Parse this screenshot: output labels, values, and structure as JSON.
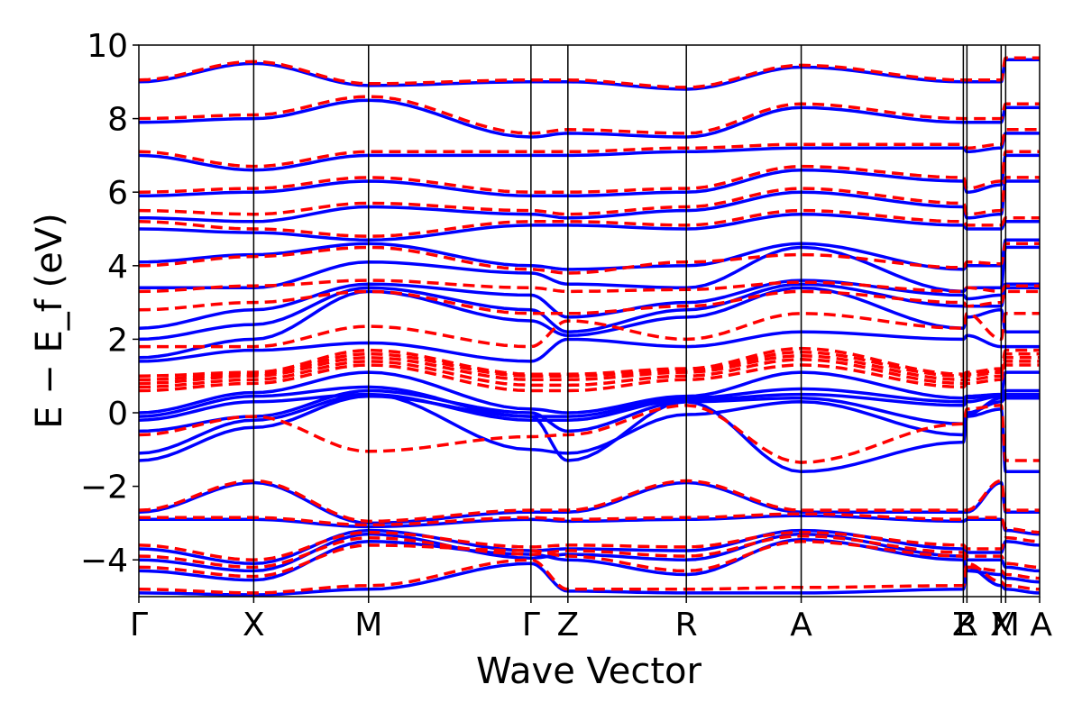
{
  "chart_data": {
    "type": "line",
    "xlabel": "Wave Vector",
    "ylabel": "E − E_f (eV)",
    "ylim": [
      -5,
      10
    ],
    "y_ticks": [
      -4,
      -2,
      0,
      2,
      4,
      6,
      8,
      10
    ],
    "y_tick_labels": [
      "−4",
      "−2",
      "0",
      "2",
      "4",
      "6",
      "8",
      "10"
    ],
    "k_path": [
      {
        "label": "Γ",
        "x": 0.0
      },
      {
        "label": "X",
        "x": 0.1275
      },
      {
        "label": "M",
        "x": 0.255
      },
      {
        "label": "Γ",
        "x": 0.4353
      },
      {
        "label": "Z",
        "x": 0.4763
      },
      {
        "label": "R",
        "x": 0.6078
      },
      {
        "label": "A",
        "x": 0.7353
      },
      {
        "label": "Z",
        "x": 0.9153
      },
      {
        "label": "R",
        "x": 0.9193
      },
      {
        "label": "X",
        "x": 0.9573
      },
      {
        "label": "M",
        "x": 0.9623
      },
      {
        "label": "A",
        "x": 1.0
      }
    ],
    "series": [
      {
        "color": "#0000ff",
        "style": "solid",
        "bands": [
          [
            -4.9,
            -4.95,
            -4.8,
            -4.1,
            -4.85,
            -4.9,
            -4.9,
            -4.8,
            -4.2,
            -4.7,
            -4.8,
            -4.9
          ],
          [
            -4.3,
            -4.55,
            -3.5,
            -3.85,
            -4.0,
            -4.4,
            -3.45,
            -4.0,
            -4.3,
            -4.4,
            -4.5,
            -4.6
          ],
          [
            -4.0,
            -4.3,
            -3.3,
            -3.95,
            -3.85,
            -4.0,
            -3.3,
            -3.9,
            -4.0,
            -4.0,
            -4.2,
            -4.3
          ],
          [
            -3.7,
            -4.1,
            -3.2,
            -3.75,
            -3.7,
            -3.75,
            -3.2,
            -3.7,
            -3.8,
            -3.8,
            -3.5,
            -3.6
          ],
          [
            -2.9,
            -2.9,
            -3.1,
            -2.9,
            -2.95,
            -2.9,
            -2.8,
            -2.95,
            -2.9,
            -2.9,
            -3.2,
            -3.3
          ],
          [
            -2.7,
            -1.9,
            -3.0,
            -2.7,
            -2.7,
            -1.9,
            -2.7,
            -2.7,
            -2.7,
            -1.9,
            -2.7,
            -2.7
          ],
          [
            -1.3,
            -0.4,
            0.45,
            -0.1,
            -1.3,
            0.3,
            -1.6,
            -0.8,
            -0.1,
            0.1,
            -1.6,
            -1.6
          ],
          [
            -1.1,
            -0.2,
            0.5,
            -1.0,
            -1.1,
            -0.05,
            0.3,
            -0.6,
            0.0,
            0.3,
            0.4,
            0.4
          ],
          [
            -0.5,
            -0.1,
            0.6,
            0.0,
            -0.5,
            0.3,
            0.4,
            -0.3,
            -0.05,
            0.4,
            0.45,
            0.45
          ],
          [
            -0.2,
            0.3,
            0.5,
            -0.2,
            -0.2,
            0.35,
            0.5,
            0.2,
            0.3,
            0.45,
            0.5,
            0.5
          ],
          [
            -0.1,
            0.45,
            0.7,
            -0.1,
            -0.1,
            0.4,
            0.65,
            0.3,
            0.4,
            0.5,
            0.6,
            0.6
          ],
          [
            0.0,
            0.55,
            1.1,
            0.1,
            0.0,
            0.45,
            1.1,
            0.4,
            0.45,
            0.5,
            1.1,
            1.1
          ],
          [
            1.4,
            1.7,
            1.9,
            1.4,
            2.0,
            1.8,
            2.2,
            2.0,
            2.1,
            1.8,
            1.8,
            1.8
          ],
          [
            1.5,
            2.0,
            3.3,
            2.5,
            2.1,
            2.6,
            3.4,
            2.3,
            2.6,
            2.8,
            2.2,
            2.2
          ],
          [
            2.0,
            2.4,
            3.4,
            2.8,
            2.2,
            2.8,
            3.5,
            2.9,
            2.9,
            2.9,
            3.4,
            3.4
          ],
          [
            2.3,
            2.8,
            3.5,
            3.2,
            2.6,
            3.0,
            3.6,
            3.2,
            3.1,
            3.2,
            3.5,
            3.5
          ],
          [
            3.4,
            3.4,
            4.1,
            3.8,
            3.5,
            3.4,
            4.5,
            3.3,
            3.4,
            3.4,
            4.5,
            4.5
          ],
          [
            4.1,
            4.3,
            4.6,
            4.0,
            3.9,
            4.0,
            4.6,
            3.9,
            4.0,
            4.0,
            4.7,
            4.7
          ],
          [
            5.0,
            4.9,
            4.7,
            5.1,
            5.1,
            5.0,
            5.4,
            5.1,
            5.0,
            5.0,
            5.2,
            5.2
          ],
          [
            5.3,
            5.2,
            5.6,
            5.4,
            5.3,
            5.5,
            6.0,
            5.6,
            5.3,
            5.4,
            6.3,
            6.3
          ],
          [
            5.9,
            6.0,
            6.3,
            5.9,
            5.9,
            6.0,
            6.6,
            6.3,
            6.0,
            6.2,
            7.0,
            7.0
          ],
          [
            7.0,
            6.6,
            7.0,
            7.0,
            7.0,
            7.1,
            7.2,
            7.2,
            7.1,
            7.2,
            7.6,
            7.6
          ],
          [
            7.9,
            8.0,
            8.5,
            7.5,
            7.6,
            7.5,
            8.3,
            7.9,
            7.9,
            7.9,
            8.3,
            8.3
          ],
          [
            9.0,
            9.5,
            8.9,
            9.0,
            9.0,
            8.8,
            9.4,
            9.0,
            9.0,
            9.0,
            9.6,
            9.6
          ]
        ]
      },
      {
        "color": "#ff0000",
        "style": "dashed",
        "bands": [
          [
            -4.8,
            -4.9,
            -4.7,
            -4.0,
            -4.8,
            -4.8,
            -4.75,
            -4.7,
            -4.1,
            -4.6,
            -4.7,
            -4.8
          ],
          [
            -4.2,
            -4.45,
            -3.6,
            -3.75,
            -3.9,
            -4.3,
            -3.5,
            -3.9,
            -4.2,
            -4.3,
            -4.4,
            -4.5
          ],
          [
            -3.9,
            -4.2,
            -3.4,
            -3.85,
            -3.75,
            -3.9,
            -3.35,
            -3.8,
            -3.9,
            -3.9,
            -4.1,
            -4.2
          ],
          [
            -3.6,
            -4.0,
            -3.25,
            -3.65,
            -3.6,
            -3.65,
            -3.25,
            -3.6,
            -3.7,
            -3.7,
            -3.4,
            -3.5
          ],
          [
            -2.85,
            -2.85,
            -3.05,
            -2.85,
            -2.9,
            -2.85,
            -2.75,
            -2.9,
            -2.85,
            -2.85,
            -3.15,
            -3.25
          ],
          [
            -2.65,
            -1.85,
            -2.95,
            -2.65,
            -2.65,
            -1.85,
            -2.65,
            -2.65,
            -2.65,
            -1.85,
            -2.65,
            -2.65
          ],
          [
            -0.6,
            -0.1,
            -1.05,
            -0.65,
            -0.6,
            0.2,
            -1.35,
            -0.3,
            0.1,
            0.2,
            -1.3,
            -1.3
          ],
          [
            0.6,
            0.8,
            1.3,
            0.6,
            0.6,
            0.9,
            1.3,
            0.7,
            0.8,
            0.9,
            1.3,
            1.3
          ],
          [
            0.7,
            0.9,
            1.4,
            0.75,
            0.75,
            1.0,
            1.45,
            0.8,
            0.9,
            1.0,
            1.4,
            1.4
          ],
          [
            0.8,
            1.0,
            1.5,
            0.9,
            0.9,
            1.1,
            1.55,
            0.9,
            1.0,
            1.1,
            1.5,
            1.5
          ],
          [
            0.9,
            1.05,
            1.6,
            1.0,
            1.0,
            1.15,
            1.65,
            1.0,
            1.05,
            1.15,
            1.6,
            1.6
          ],
          [
            1.0,
            1.1,
            1.7,
            1.05,
            1.05,
            1.2,
            1.75,
            1.05,
            1.1,
            1.2,
            1.7,
            1.7
          ],
          [
            1.8,
            1.8,
            2.35,
            1.8,
            2.5,
            2.0,
            2.7,
            2.3,
            2.7,
            2.0,
            2.7,
            2.7
          ],
          [
            2.8,
            3.0,
            3.3,
            2.7,
            2.7,
            2.9,
            3.3,
            3.0,
            2.9,
            3.0,
            3.3,
            3.3
          ],
          [
            3.3,
            3.45,
            3.6,
            3.4,
            3.3,
            3.35,
            3.55,
            3.3,
            3.4,
            3.3,
            3.45,
            3.45
          ],
          [
            4.0,
            4.25,
            4.5,
            3.9,
            3.8,
            4.1,
            4.3,
            3.95,
            4.1,
            4.05,
            4.6,
            4.6
          ],
          [
            5.2,
            5.0,
            4.8,
            5.2,
            5.2,
            5.1,
            5.5,
            5.2,
            5.1,
            5.1,
            5.3,
            5.3
          ],
          [
            5.5,
            5.4,
            5.7,
            5.5,
            5.4,
            5.6,
            6.1,
            5.7,
            5.4,
            5.5,
            6.4,
            6.4
          ],
          [
            6.0,
            6.1,
            6.4,
            6.0,
            6.0,
            6.1,
            6.7,
            6.4,
            6.1,
            6.3,
            7.1,
            7.1
          ],
          [
            7.1,
            6.7,
            7.1,
            7.1,
            7.1,
            7.2,
            7.3,
            7.3,
            7.2,
            7.3,
            7.7,
            7.7
          ],
          [
            8.0,
            8.1,
            8.6,
            7.6,
            7.7,
            7.6,
            8.4,
            8.0,
            8.0,
            8.0,
            8.4,
            8.4
          ],
          [
            9.05,
            9.55,
            8.95,
            9.05,
            9.05,
            8.85,
            9.45,
            9.05,
            9.05,
            9.05,
            9.65,
            9.65
          ]
        ]
      }
    ]
  }
}
